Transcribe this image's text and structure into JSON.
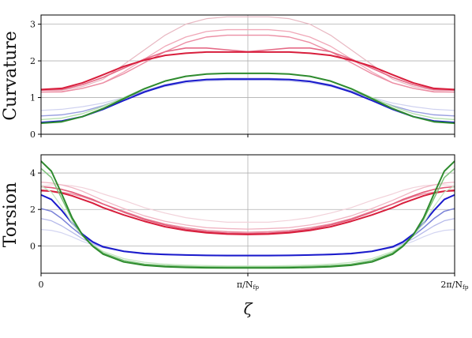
{
  "chart_data": [
    {
      "type": "line",
      "ylabel": "Curvature",
      "xlabel": "",
      "xlim": [
        0,
        2
      ],
      "ylim": [
        0,
        3.25
      ],
      "yticks": [
        0,
        1,
        2,
        3
      ],
      "xticks": [
        0,
        1,
        2
      ],
      "xtick_labels": [
        "",
        "",
        ""
      ],
      "grid": true,
      "x": [
        0,
        0.1,
        0.2,
        0.3,
        0.4,
        0.5,
        0.6,
        0.7,
        0.8,
        0.9,
        1.0,
        1.1,
        1.2,
        1.3,
        1.4,
        1.5,
        1.6,
        1.7,
        1.8,
        1.9,
        2.0
      ],
      "series": [
        {
          "color": "#e8b8c2",
          "width": 1.2,
          "values": [
            1.2,
            1.2,
            1.3,
            1.5,
            1.9,
            2.3,
            2.7,
            3.0,
            3.15,
            3.2,
            3.2,
            3.2,
            3.15,
            3.0,
            2.7,
            2.3,
            1.9,
            1.5,
            1.3,
            1.2,
            1.2
          ]
        },
        {
          "color": "#f0a8b8",
          "width": 1.3,
          "values": [
            1.15,
            1.15,
            1.25,
            1.4,
            1.7,
            2.05,
            2.4,
            2.65,
            2.8,
            2.85,
            2.85,
            2.85,
            2.8,
            2.65,
            2.4,
            2.05,
            1.7,
            1.4,
            1.25,
            1.15,
            1.15
          ]
        },
        {
          "color": "#ec8ea4",
          "width": 1.4,
          "values": [
            1.15,
            1.16,
            1.25,
            1.4,
            1.65,
            1.95,
            2.25,
            2.5,
            2.65,
            2.7,
            2.7,
            2.7,
            2.65,
            2.5,
            2.25,
            1.95,
            1.65,
            1.4,
            1.25,
            1.16,
            1.15
          ]
        },
        {
          "color": "#e56a86",
          "width": 1.6,
          "values": [
            1.2,
            1.22,
            1.35,
            1.55,
            1.8,
            2.05,
            2.25,
            2.35,
            2.35,
            2.3,
            2.25,
            2.3,
            2.35,
            2.35,
            2.25,
            2.05,
            1.8,
            1.55,
            1.35,
            1.22,
            1.2
          ]
        },
        {
          "color": "#d81e3c",
          "width": 2.0,
          "values": [
            1.22,
            1.25,
            1.4,
            1.62,
            1.85,
            2.02,
            2.15,
            2.21,
            2.24,
            2.24,
            2.24,
            2.24,
            2.24,
            2.21,
            2.15,
            2.02,
            1.85,
            1.62,
            1.4,
            1.25,
            1.22
          ]
        },
        {
          "color": "#cfd2f0",
          "width": 1.2,
          "values": [
            0.65,
            0.68,
            0.75,
            0.85,
            1.0,
            1.15,
            1.3,
            1.4,
            1.45,
            1.47,
            1.47,
            1.47,
            1.45,
            1.4,
            1.3,
            1.15,
            1.0,
            0.85,
            0.75,
            0.68,
            0.65
          ]
        },
        {
          "color": "#9aa0e0",
          "width": 1.4,
          "values": [
            0.5,
            0.53,
            0.62,
            0.78,
            0.98,
            1.18,
            1.35,
            1.45,
            1.5,
            1.52,
            1.52,
            1.52,
            1.5,
            1.45,
            1.35,
            1.18,
            0.98,
            0.78,
            0.62,
            0.53,
            0.5
          ]
        },
        {
          "color": "#b5e0b0",
          "width": 1.4,
          "values": [
            0.4,
            0.44,
            0.56,
            0.76,
            1.0,
            1.25,
            1.45,
            1.58,
            1.64,
            1.66,
            1.66,
            1.66,
            1.64,
            1.58,
            1.45,
            1.25,
            1.0,
            0.76,
            0.56,
            0.44,
            0.4
          ]
        },
        {
          "color": "#1a1acc",
          "width": 2.0,
          "values": [
            0.32,
            0.36,
            0.48,
            0.68,
            0.92,
            1.15,
            1.33,
            1.44,
            1.49,
            1.5,
            1.5,
            1.5,
            1.49,
            1.44,
            1.33,
            1.15,
            0.92,
            0.68,
            0.48,
            0.36,
            0.32
          ]
        },
        {
          "color": "#2e8b2e",
          "width": 2.0,
          "values": [
            0.3,
            0.34,
            0.48,
            0.7,
            0.97,
            1.24,
            1.45,
            1.58,
            1.64,
            1.66,
            1.66,
            1.66,
            1.64,
            1.58,
            1.45,
            1.24,
            0.97,
            0.7,
            0.48,
            0.34,
            0.3
          ]
        }
      ]
    },
    {
      "type": "line",
      "ylabel": "Torsion",
      "xlabel": "ζ",
      "xlim": [
        0,
        2
      ],
      "ylim": [
        -1.5,
        5.0
      ],
      "yticks": [
        0,
        2,
        4
      ],
      "xticks": [
        0,
        1,
        2
      ],
      "xtick_labels": [
        "0",
        "π/N",
        "2π/N"
      ],
      "xtick_subscripts": [
        "",
        "fp",
        "fp"
      ],
      "grid": true,
      "x": [
        0,
        0.05,
        0.1,
        0.15,
        0.2,
        0.25,
        0.3,
        0.4,
        0.5,
        0.6,
        0.7,
        0.8,
        0.9,
        1.0,
        1.1,
        1.2,
        1.3,
        1.4,
        1.5,
        1.6,
        1.7,
        1.75,
        1.8,
        1.85,
        1.9,
        1.95,
        2.0
      ],
      "series": [
        {
          "color": "#f2d2da",
          "width": 1.2,
          "values": [
            3.3,
            3.35,
            3.35,
            3.3,
            3.2,
            3.05,
            2.85,
            2.5,
            2.1,
            1.8,
            1.55,
            1.4,
            1.3,
            1.3,
            1.3,
            1.4,
            1.55,
            1.8,
            2.1,
            2.5,
            2.85,
            3.05,
            3.2,
            3.3,
            3.35,
            3.35,
            3.3
          ]
        },
        {
          "color": "#f0b4c2",
          "width": 1.3,
          "values": [
            3.5,
            3.45,
            3.35,
            3.2,
            3.0,
            2.75,
            2.5,
            2.05,
            1.65,
            1.35,
            1.15,
            1.0,
            0.95,
            0.92,
            0.95,
            1.0,
            1.15,
            1.35,
            1.65,
            2.05,
            2.5,
            2.75,
            3.0,
            3.2,
            3.35,
            3.45,
            3.5
          ]
        },
        {
          "color": "#ea8ea2",
          "width": 1.4,
          "values": [
            3.0,
            3.0,
            2.95,
            2.85,
            2.7,
            2.5,
            2.3,
            1.9,
            1.5,
            1.2,
            1.0,
            0.85,
            0.78,
            0.75,
            0.78,
            0.85,
            1.0,
            1.2,
            1.5,
            1.9,
            2.3,
            2.5,
            2.7,
            2.85,
            2.95,
            3.0,
            3.0
          ]
        },
        {
          "color": "#e25a78",
          "width": 1.6,
          "values": [
            3.25,
            3.2,
            3.1,
            2.95,
            2.75,
            2.55,
            2.3,
            1.85,
            1.45,
            1.15,
            0.92,
            0.78,
            0.7,
            0.68,
            0.7,
            0.78,
            0.92,
            1.15,
            1.45,
            1.85,
            2.3,
            2.55,
            2.75,
            2.95,
            3.1,
            3.2,
            3.25
          ]
        },
        {
          "color": "#d81e3c",
          "width": 2.0,
          "values": [
            3.05,
            3.0,
            2.9,
            2.75,
            2.55,
            2.35,
            2.1,
            1.7,
            1.35,
            1.05,
            0.85,
            0.72,
            0.65,
            0.63,
            0.65,
            0.72,
            0.85,
            1.05,
            1.35,
            1.7,
            2.1,
            2.35,
            2.55,
            2.75,
            2.9,
            3.0,
            3.05
          ]
        },
        {
          "color": "#d4d6f2",
          "width": 1.2,
          "values": [
            0.9,
            0.85,
            0.72,
            0.5,
            0.25,
            0.05,
            -0.1,
            -0.3,
            -0.4,
            -0.45,
            -0.48,
            -0.5,
            -0.5,
            -0.5,
            -0.5,
            -0.5,
            -0.48,
            -0.45,
            -0.4,
            -0.3,
            -0.1,
            0.05,
            0.25,
            0.5,
            0.72,
            0.85,
            0.9
          ]
        },
        {
          "color": "#b6baea",
          "width": 1.3,
          "values": [
            1.5,
            1.38,
            1.1,
            0.75,
            0.4,
            0.12,
            -0.08,
            -0.3,
            -0.42,
            -0.47,
            -0.5,
            -0.52,
            -0.52,
            -0.52,
            -0.52,
            -0.52,
            -0.5,
            -0.47,
            -0.42,
            -0.3,
            -0.08,
            0.12,
            0.4,
            0.75,
            1.1,
            1.38,
            1.5
          ]
        },
        {
          "color": "#7a82d8",
          "width": 1.5,
          "values": [
            2.05,
            1.9,
            1.5,
            1.0,
            0.55,
            0.2,
            -0.03,
            -0.28,
            -0.4,
            -0.46,
            -0.5,
            -0.52,
            -0.53,
            -0.53,
            -0.53,
            -0.52,
            -0.5,
            -0.46,
            -0.4,
            -0.28,
            -0.03,
            0.2,
            0.55,
            1.0,
            1.5,
            1.9,
            2.05
          ]
        },
        {
          "color": "#1a1acc",
          "width": 2.0,
          "values": [
            2.8,
            2.55,
            1.95,
            1.25,
            0.65,
            0.22,
            -0.05,
            -0.3,
            -0.42,
            -0.47,
            -0.5,
            -0.52,
            -0.53,
            -0.53,
            -0.53,
            -0.52,
            -0.5,
            -0.47,
            -0.42,
            -0.3,
            -0.05,
            0.22,
            0.65,
            1.25,
            1.95,
            2.55,
            2.8
          ]
        },
        {
          "color": "#c6e6c2",
          "width": 1.3,
          "values": [
            3.3,
            2.95,
            2.15,
            1.25,
            0.55,
            0.05,
            -0.3,
            -0.7,
            -0.9,
            -1.0,
            -1.05,
            -1.08,
            -1.1,
            -1.1,
            -1.1,
            -1.08,
            -1.05,
            -1.0,
            -0.9,
            -0.7,
            -0.3,
            0.05,
            0.55,
            1.25,
            2.15,
            2.95,
            3.3
          ]
        },
        {
          "color": "#7cc27a",
          "width": 1.5,
          "values": [
            4.25,
            3.75,
            2.6,
            1.45,
            0.6,
            0.02,
            -0.38,
            -0.8,
            -1.0,
            -1.08,
            -1.12,
            -1.15,
            -1.16,
            -1.16,
            -1.16,
            -1.15,
            -1.12,
            -1.08,
            -1.0,
            -0.8,
            -0.38,
            0.02,
            0.6,
            1.45,
            2.6,
            3.75,
            4.25
          ]
        },
        {
          "color": "#2e8b2e",
          "width": 2.0,
          "values": [
            4.65,
            4.1,
            2.85,
            1.55,
            0.6,
            -0.02,
            -0.45,
            -0.88,
            -1.06,
            -1.14,
            -1.18,
            -1.2,
            -1.21,
            -1.21,
            -1.21,
            -1.2,
            -1.18,
            -1.14,
            -1.06,
            -0.88,
            -0.45,
            -0.02,
            0.6,
            1.55,
            2.85,
            4.1,
            4.65
          ]
        }
      ]
    }
  ]
}
